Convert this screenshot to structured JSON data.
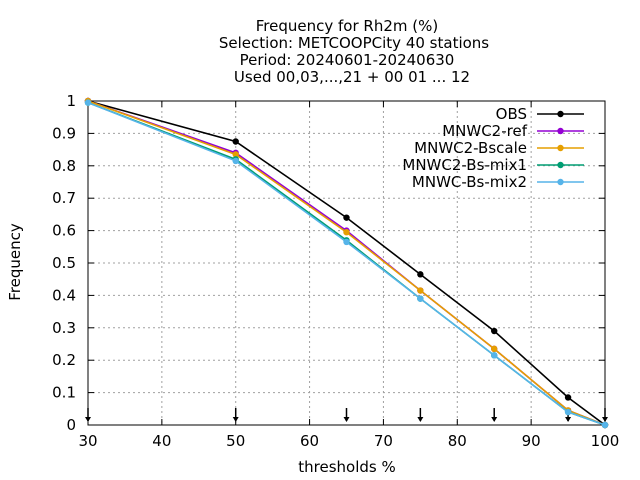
{
  "chart_data": {
    "type": "line",
    "title_lines": [
      "Frequency  for Rh2m (%)",
      "Selection: METCOOPCity     40 stations",
      "Period: 20240601-20240630",
      "Used 00,03,...,21 + 00 01 ... 12"
    ],
    "xlabel": "thresholds %",
    "ylabel": "Frequency",
    "xlim": [
      30,
      100
    ],
    "ylim": [
      0,
      1
    ],
    "xticks": [
      30,
      40,
      50,
      60,
      70,
      80,
      90,
      100
    ],
    "yticks": [
      0,
      0.1,
      0.2,
      0.3,
      0.4,
      0.5,
      0.6,
      0.7,
      0.8,
      0.9,
      1
    ],
    "ytick_labels": [
      "0",
      "0.1",
      "0.2",
      "0.3",
      "0.4",
      "0.5",
      "0.6",
      "0.7",
      "0.8",
      "0.9",
      "1"
    ],
    "grid": true,
    "legend_position": "top-right",
    "x": [
      30,
      50,
      65,
      75,
      85,
      95,
      100
    ],
    "threshold_markers": [
      30,
      50,
      65,
      75,
      85,
      95,
      100
    ],
    "series": [
      {
        "name": "OBS",
        "color": "#000000",
        "values": [
          1.0,
          0.875,
          0.64,
          0.465,
          0.29,
          0.085,
          0.0
        ]
      },
      {
        "name": "MNWC2-ref",
        "color": "#9400d3",
        "values": [
          1.0,
          0.84,
          0.6,
          0.415,
          0.235,
          0.045,
          0.0
        ]
      },
      {
        "name": "MNWC2-Bscale",
        "color": "#e69f00",
        "values": [
          1.0,
          0.835,
          0.595,
          0.415,
          0.235,
          0.045,
          0.0
        ]
      },
      {
        "name": "MNWC2-Bs-mix1",
        "color": "#009e73",
        "values": [
          0.995,
          0.82,
          0.57,
          0.39,
          0.215,
          0.04,
          0.0
        ]
      },
      {
        "name": "MNWC-Bs-mix2",
        "color": "#56b4e9",
        "values": [
          0.995,
          0.815,
          0.565,
          0.39,
          0.215,
          0.04,
          0.0
        ]
      }
    ]
  }
}
